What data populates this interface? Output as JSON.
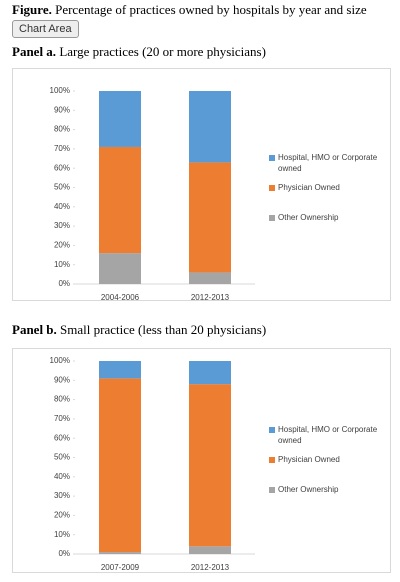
{
  "header": {
    "label": "Figure.",
    "title": "Percentage of practices owned by hospitals by year and size"
  },
  "button": "Chart Area",
  "chart_data": [
    {
      "type": "bar",
      "stacked": true,
      "panel_label": "Panel a.",
      "title": "Large practices (20 or more physicians)",
      "categories": [
        "2004-2006",
        "2012-2013"
      ],
      "series": [
        {
          "name": "Hospital, HMO or Corporate owned",
          "color": "#5b9bd5",
          "values": [
            29,
            37
          ]
        },
        {
          "name": "Physician Owned",
          "color": "#ed7d31",
          "values": [
            55,
            57
          ]
        },
        {
          "name": "Other Ownership",
          "color": "#a5a5a5",
          "values": [
            16,
            6
          ]
        }
      ],
      "ylim": [
        0,
        100
      ],
      "yticks": [
        {
          "value": 0,
          "label": "0%"
        },
        {
          "value": 10,
          "label": "10%"
        },
        {
          "value": 20,
          "label": "20%"
        },
        {
          "value": 30,
          "label": "30%"
        },
        {
          "value": 40,
          "label": "40%"
        },
        {
          "value": 50,
          "label": "50%"
        },
        {
          "value": 60,
          "label": "60%"
        },
        {
          "value": 70,
          "label": "70%"
        },
        {
          "value": 80,
          "label": "80%"
        },
        {
          "value": 90,
          "label": "90%"
        },
        {
          "value": 100,
          "label": "100%"
        }
      ],
      "legend": "right"
    },
    {
      "type": "bar",
      "stacked": true,
      "panel_label": "Panel b.",
      "title": "Small practice (less than 20 physicians)",
      "categories": [
        "2007-2009",
        "2012-2013"
      ],
      "series": [
        {
          "name": "Hospital, HMO or Corporate owned",
          "color": "#5b9bd5",
          "values": [
            9,
            12
          ]
        },
        {
          "name": "Physician Owned",
          "color": "#ed7d31",
          "values": [
            90,
            84
          ]
        },
        {
          "name": "Other Ownership",
          "color": "#a5a5a5",
          "values": [
            1,
            4
          ]
        }
      ],
      "ylim": [
        0,
        100
      ],
      "yticks": [
        {
          "value": 0,
          "label": "0%"
        },
        {
          "value": 10,
          "label": "10%"
        },
        {
          "value": 20,
          "label": "20%"
        },
        {
          "value": 30,
          "label": "30%"
        },
        {
          "value": 40,
          "label": "40%"
        },
        {
          "value": 50,
          "label": "50%"
        },
        {
          "value": 60,
          "label": "60%"
        },
        {
          "value": 70,
          "label": "70%"
        },
        {
          "value": 80,
          "label": "80%"
        },
        {
          "value": 90,
          "label": "90%"
        },
        {
          "value": 100,
          "label": "100%"
        }
      ],
      "legend": "right"
    }
  ]
}
